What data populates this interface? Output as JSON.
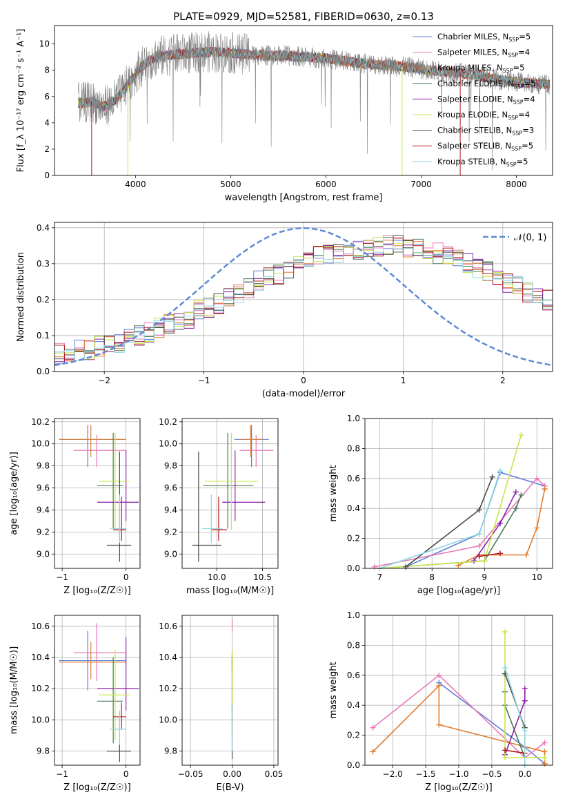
{
  "figure_title": "PLATE=0929, MJD=52581, FIBERID=0630, z=0.13",
  "colors": {
    "Chabrier MILES": "#5f7fd9",
    "Salpeter MILES": "#e878b8",
    "Kroupa MILES": "#e07b2e",
    "Chabrier ELODIE": "#4a7a55",
    "Salpeter ELODIE": "#8a1fa8",
    "Kroupa ELODIE": "#c8e64a",
    "Chabrier STELIB": "#4a4a4a",
    "Salpeter STELIB": "#b31a1a",
    "Kroupa STELIB": "#8fd6e0",
    "data": "#808080",
    "gaussian": "#5b8ad6"
  },
  "chart_data": [
    {
      "id": "spectrum",
      "type": "line",
      "xlabel": "wavelength [Angstrom, rest frame]",
      "ylabel": "Flux [f_λ 10^-17 erg cm^-2 s^-1 A^-1]",
      "xlim": [
        3150,
        8380
      ],
      "ylim": [
        0,
        11.4
      ],
      "xticks": [
        4000,
        5000,
        6000,
        7000,
        8000
      ],
      "yticks": [
        0,
        2,
        4,
        6,
        8,
        10
      ],
      "grid": false,
      "legend_position": "top-right",
      "legend": [
        {
          "name": "Chabrier MILES",
          "nssp": "5"
        },
        {
          "name": "Salpeter MILES",
          "nssp": "4"
        },
        {
          "name": "Kroupa MILES",
          "nssp": "5"
        },
        {
          "name": "Chabrier ELODIE",
          "nssp": "5"
        },
        {
          "name": "Salpeter ELODIE",
          "nssp": "4"
        },
        {
          "name": "Kroupa ELODIE",
          "nssp": "4"
        },
        {
          "name": "Chabrier STELIB",
          "nssp": "3"
        },
        {
          "name": "Salpeter STELIB",
          "nssp": "5"
        },
        {
          "name": "Kroupa STELIB",
          "nssp": "5"
        }
      ],
      "continuum_x": [
        3400,
        3550,
        3650,
        3750,
        3850,
        3950,
        4050,
        4200,
        4400,
        4600,
        4800,
        5000,
        5200,
        5400,
        5600,
        5800,
        6000,
        6200,
        6400,
        6600,
        6800,
        7000,
        7200,
        7400,
        7600,
        7800,
        8000,
        8200,
        8350
      ],
      "continuum_y": [
        5.5,
        5.6,
        5.2,
        5.5,
        6.2,
        7.2,
        8.2,
        9.0,
        9.2,
        9.3,
        9.4,
        9.3,
        9.2,
        9.1,
        9.1,
        9.0,
        8.9,
        8.7,
        8.5,
        8.4,
        8.3,
        8.1,
        7.9,
        7.8,
        7.6,
        7.3,
        7.1,
        7.0,
        6.9
      ]
    },
    {
      "id": "residuals",
      "type": "bar",
      "xlabel": "(data-model)/error",
      "ylabel": "Normed distribution",
      "xlim": [
        -2.5,
        2.5
      ],
      "ylim": [
        0,
        0.415
      ],
      "xticks": [
        -2,
        -1,
        0,
        1,
        2
      ],
      "yticks": [
        0.0,
        0.1,
        0.2,
        0.3,
        0.4
      ],
      "grid": true,
      "legend_position": "top-right",
      "gaussian_label": "𝒩(0, 1)",
      "bin_width": 0.1,
      "approx_histogram_y": [
        0.05,
        0.05,
        0.06,
        0.06,
        0.07,
        0.07,
        0.08,
        0.09,
        0.1,
        0.11,
        0.12,
        0.13,
        0.14,
        0.15,
        0.17,
        0.18,
        0.19,
        0.21,
        0.22,
        0.23,
        0.25,
        0.26,
        0.27,
        0.29,
        0.3,
        0.31,
        0.32,
        0.33,
        0.33,
        0.34,
        0.34,
        0.34,
        0.35,
        0.35,
        0.35,
        0.34,
        0.34,
        0.34,
        0.33,
        0.32,
        0.31,
        0.3,
        0.29,
        0.28,
        0.26,
        0.25,
        0.24,
        0.22,
        0.21,
        0.2
      ]
    },
    {
      "id": "age-vs-Z",
      "type": "scatter",
      "xlabel": "Z [log10(Z/Z☉)]",
      "ylabel": "age  [log10(age/yr)]",
      "xlim": [
        -1.12,
        0.22
      ],
      "ylim": [
        8.87,
        10.23
      ],
      "xticks": [
        -1,
        0
      ],
      "yticks": [
        9.0,
        9.2,
        9.4,
        9.6,
        9.8,
        10.0,
        10.2
      ],
      "grid": true
    },
    {
      "id": "age-vs-mass",
      "type": "scatter",
      "xlabel": "mass [log10(M/M☉)]",
      "ylabel": "",
      "xlim": [
        9.62,
        10.67
      ],
      "ylim": [
        8.87,
        10.23
      ],
      "xticks": [
        10.0,
        10.5
      ],
      "yticks": [
        9.0,
        9.2,
        9.4,
        9.6,
        9.8,
        10.0,
        10.2
      ],
      "grid": true
    },
    {
      "id": "weight-vs-age",
      "type": "line",
      "xlabel": "age  [log10(age/yr)]",
      "ylabel": "mass weight",
      "xlim": [
        6.72,
        10.3
      ],
      "ylim": [
        0,
        1.0
      ],
      "xticks": [
        7,
        8,
        9,
        10
      ],
      "yticks": [
        0.0,
        0.2,
        0.4,
        0.6,
        0.8,
        1.0
      ],
      "grid": true
    },
    {
      "id": "mass-vs-Z",
      "type": "scatter",
      "xlabel": "Z [log10(Z/Z☉)]",
      "ylabel": "mass [log10(M/M☉)]",
      "xlim": [
        -1.12,
        0.22
      ],
      "ylim": [
        9.71,
        10.67
      ],
      "xticks": [
        -1,
        0
      ],
      "yticks": [
        9.8,
        10.0,
        10.2,
        10.4,
        10.6
      ],
      "grid": true
    },
    {
      "id": "mass-vs-EBV",
      "type": "scatter",
      "xlabel": "E(B-V)",
      "ylabel": "",
      "xlim": [
        -0.06,
        0.055
      ],
      "ylim": [
        9.71,
        10.67
      ],
      "xticks": [
        -0.05,
        0.0,
        0.05
      ],
      "yticks": [
        9.8,
        10.0,
        10.2,
        10.4,
        10.6
      ],
      "grid": true
    },
    {
      "id": "weight-vs-Z",
      "type": "line",
      "xlabel": "Z [log10(Z/Z☉)]",
      "ylabel": "mass weight",
      "xlim": [
        -2.42,
        0.42
      ],
      "ylim": [
        0,
        1.0
      ],
      "xticks": [
        -2.0,
        -1.5,
        -1.0,
        -0.5,
        0.0
      ],
      "yticks": [
        0.0,
        0.2,
        0.4,
        0.6,
        0.8,
        1.0
      ],
      "grid": true
    }
  ],
  "fits": [
    {
      "name": "Chabrier MILES",
      "Z": -0.6,
      "Zlo": -1.05,
      "Zhi": 0.0,
      "age": 10.04,
      "agelo": 9.79,
      "agehi": 10.17,
      "mass": 10.38,
      "masslo": 10.19,
      "masshi": 10.57,
      "ebv": 0.0,
      "ebvlo": 10.34,
      "ebvhi": 10.44,
      "wage_x": [
        7.5,
        8.9,
        9.3,
        10.15
      ],
      "wage_y": [
        0.01,
        0.23,
        0.64,
        0.55
      ],
      "wz_x": [
        -1.3,
        0.0,
        0.3
      ],
      "wz_y": [
        0.55,
        0.12,
        0.01
      ]
    },
    {
      "name": "Salpeter MILES",
      "Z": -0.46,
      "Zlo": -0.82,
      "Zhi": 0.0,
      "age": 9.94,
      "agelo": 9.79,
      "agehi": 10.08,
      "mass": 10.43,
      "masslo": 10.25,
      "masshi": 10.62,
      "ebv": 0.0,
      "ebvlo": 10.57,
      "ebvhi": 10.65,
      "wage_x": [
        6.9,
        8.9,
        10.0,
        10.15
      ],
      "wage_y": [
        0.01,
        0.15,
        0.6,
        0.55
      ],
      "wz_x": [
        -2.3,
        -1.3,
        0.0,
        0.3
      ],
      "wz_y": [
        0.25,
        0.6,
        0.05,
        0.15
      ]
    },
    {
      "name": "Kroupa MILES",
      "Z": -0.55,
      "Zlo": -1.05,
      "Zhi": 0.0,
      "age": 10.04,
      "agelo": 9.88,
      "agehi": 10.17,
      "mass": 10.37,
      "masslo": 10.26,
      "masshi": 10.5,
      "ebv": 0.0,
      "ebvlo": 10.3,
      "ebvhi": 10.44,
      "wage_x": [
        8.5,
        8.9,
        9.8,
        10.0,
        10.15
      ],
      "wage_y": [
        0.02,
        0.09,
        0.09,
        0.27,
        0.53
      ],
      "wz_x": [
        -2.3,
        -1.3,
        -1.3,
        0.3,
        0.3
      ],
      "wz_y": [
        0.09,
        0.53,
        0.27,
        0.09,
        0.01
      ]
    },
    {
      "name": "Chabrier ELODIE",
      "Z": -0.2,
      "Zlo": -0.45,
      "Zhi": -0.05,
      "age": 9.62,
      "agelo": 9.23,
      "agehi": 10.1,
      "mass": 10.12,
      "masslo": 9.85,
      "masshi": 10.4,
      "ebv": 0.0,
      "ebvlo": 9.9,
      "ebvhi": 10.4,
      "wage_x": [
        7.0,
        9.0,
        9.6,
        9.7
      ],
      "wage_y": [
        0.0,
        0.05,
        0.4,
        0.49
      ],
      "wz_x": [
        -0.3,
        -0.3,
        0.0
      ],
      "wz_y": [
        0.49,
        0.4,
        0.05
      ]
    },
    {
      "name": "Salpeter ELODIE",
      "Z": 0.0,
      "Zlo": -0.45,
      "Zhi": 0.2,
      "age": 9.47,
      "agelo": 9.3,
      "agehi": 9.94,
      "mass": 10.2,
      "masslo": 10.06,
      "masshi": 10.53,
      "ebv": 0.0,
      "ebvlo": 10.06,
      "ebvhi": 10.4,
      "wage_x": [
        8.8,
        9.3,
        9.6
      ],
      "wage_y": [
        0.05,
        0.3,
        0.51
      ],
      "wz_x": [
        -0.3,
        0.0,
        0.0
      ],
      "wz_y": [
        0.07,
        0.43,
        0.51
      ]
    },
    {
      "name": "Kroupa ELODIE",
      "Z": -0.17,
      "Zlo": -0.42,
      "Zhi": 0.05,
      "age": 9.66,
      "agelo": 9.22,
      "agehi": 10.1,
      "mass": 10.16,
      "masslo": 9.87,
      "masshi": 10.45,
      "ebv": 0.0,
      "ebvlo": 9.87,
      "ebvhi": 10.45,
      "wage_x": [
        7.0,
        9.0,
        9.7
      ],
      "wage_y": [
        0.0,
        0.05,
        0.89
      ],
      "wz_x": [
        -0.3,
        -0.3,
        0.3
      ],
      "wz_y": [
        0.89,
        0.05,
        0.05
      ]
    },
    {
      "name": "Chabrier STELIB",
      "Z": -0.1,
      "Zlo": -0.3,
      "Zhi": 0.08,
      "age": 9.08,
      "agelo": 8.93,
      "agehi": 9.93,
      "mass": 9.8,
      "masslo": 9.73,
      "masshi": 10.05,
      "ebv": 0.0,
      "ebvlo": 9.75,
      "ebvhi": 10.0,
      "wage_x": [
        7.5,
        8.9,
        9.15
      ],
      "wage_y": [
        0.01,
        0.39,
        0.61
      ],
      "wz_x": [
        -0.3,
        0.0
      ],
      "wz_y": [
        0.61,
        0.25
      ]
    },
    {
      "name": "Salpeter STELIB",
      "Z": -0.07,
      "Zlo": -0.2,
      "Zhi": 0.0,
      "age": 9.22,
      "agelo": 9.12,
      "agehi": 9.52,
      "mass": 10.02,
      "masslo": 9.94,
      "masshi": 10.11,
      "ebv": 0.0,
      "ebvlo": 10.0,
      "ebvhi": 10.1,
      "wage_x": [
        8.9,
        9.3
      ],
      "wage_y": [
        0.08,
        0.1
      ],
      "wz_x": [
        -0.3,
        0.0
      ],
      "wz_y": [
        0.1,
        0.08
      ]
    },
    {
      "name": "Kroupa STELIB",
      "Z": -0.1,
      "Zlo": -0.25,
      "Zhi": 0.0,
      "age": 9.23,
      "agelo": 9.1,
      "agehi": 9.54,
      "mass": 9.94,
      "masslo": 9.84,
      "masshi": 10.06,
      "ebv": 0.0,
      "ebvlo": 9.8,
      "ebvhi": 10.1,
      "wage_x": [
        7.0,
        8.9,
        9.3
      ],
      "wage_y": [
        0.0,
        0.23,
        0.65
      ],
      "wz_x": [
        -0.3,
        0.0,
        0.0
      ],
      "wz_y": [
        0.65,
        0.23,
        0.0
      ]
    }
  ]
}
